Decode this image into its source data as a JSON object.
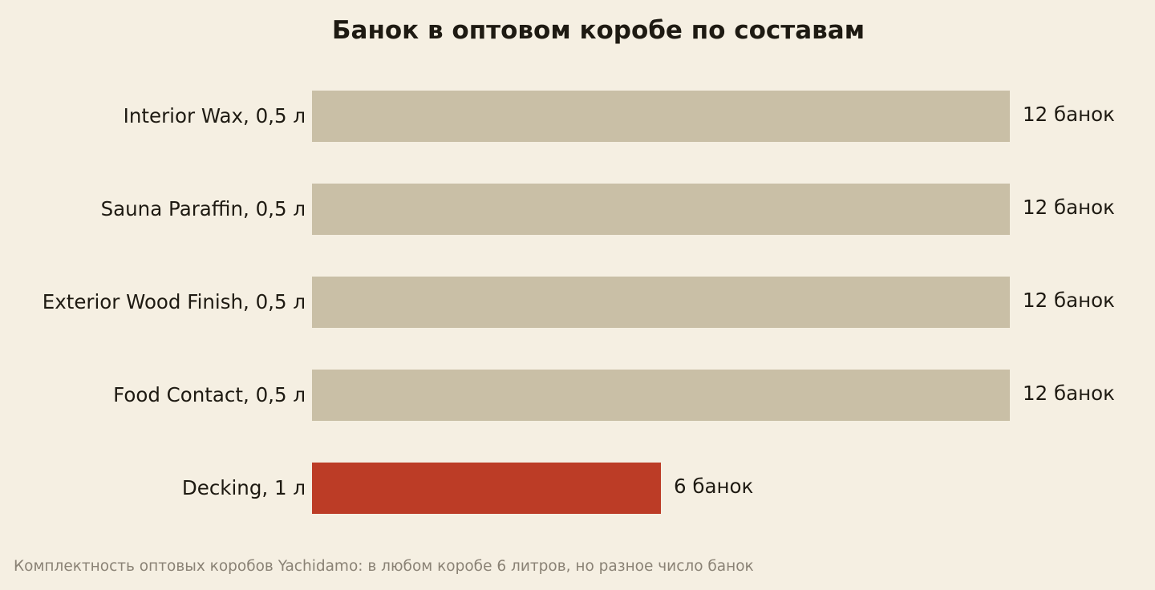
{
  "colors": {
    "background": "#f5efe2",
    "bar_default": "#c9bfa6",
    "bar_highlight": "#bc3c26",
    "text": "#1e1a12",
    "note": "#8a8275"
  },
  "chart_data": {
    "type": "bar",
    "orientation": "horizontal",
    "title": "Банок в оптовом коробе по составам",
    "categories": [
      "Interior Wax, 0,5 л",
      "Sauna Paraffin, 0,5 л",
      "Exterior Wood Finish, 0,5 л",
      "Food Contact, 0,5 л",
      "Decking, 1 л"
    ],
    "values": [
      12,
      12,
      12,
      12,
      6
    ],
    "value_labels": [
      "12 банок",
      "12 банок",
      "12 банок",
      "12 банок",
      "6 банок"
    ],
    "highlight_index": 4,
    "xlim": [
      0,
      12
    ],
    "grid": false,
    "xlabel": "",
    "ylabel": ""
  },
  "note": "Комплектность оптовых коробов Yachidamo: в любом коробе 6 литров, но разное число банок"
}
